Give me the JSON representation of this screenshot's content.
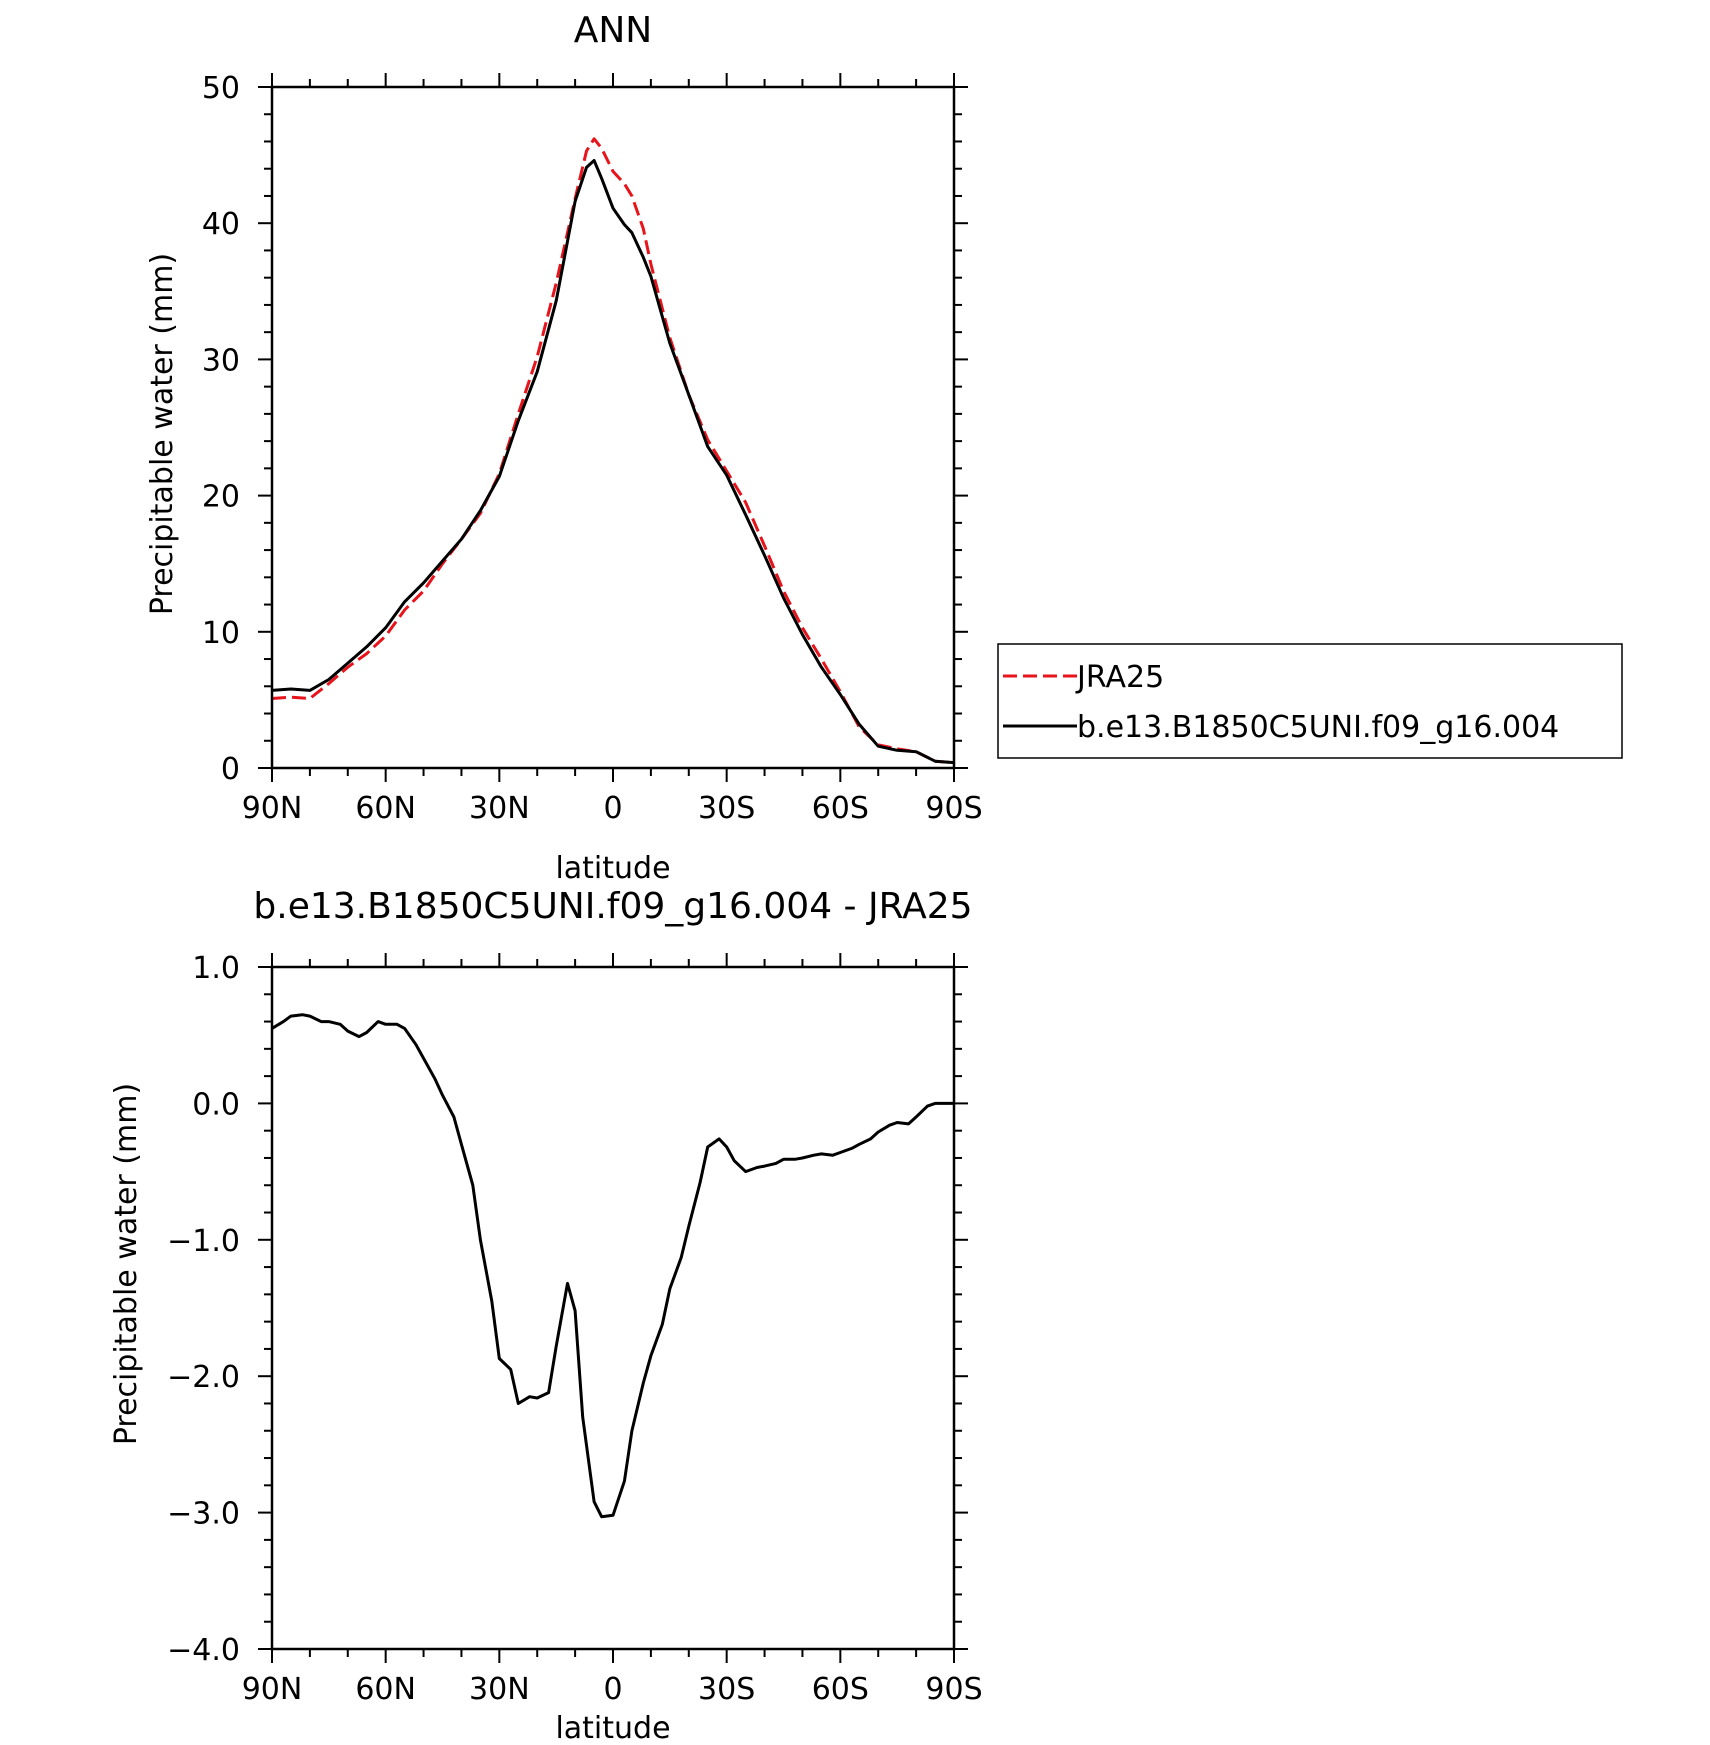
{
  "colors": {
    "jra": "#e8141c",
    "model": "#000000"
  },
  "chart_data": [
    {
      "type": "line",
      "title": "ANN",
      "xlabel": "latitude",
      "ylabel": "Precipitable water (mm)",
      "xlim": [
        -90,
        90
      ],
      "ylim": [
        0,
        50
      ],
      "xticks": [
        {
          "value": -90,
          "label": "90N"
        },
        {
          "value": -60,
          "label": "60N"
        },
        {
          "value": -30,
          "label": "30N"
        },
        {
          "value": 0,
          "label": "0"
        },
        {
          "value": 30,
          "label": "30S"
        },
        {
          "value": 60,
          "label": "60S"
        },
        {
          "value": 90,
          "label": "90S"
        }
      ],
      "yticks": [
        {
          "value": 0,
          "label": "0"
        },
        {
          "value": 10,
          "label": "10"
        },
        {
          "value": 20,
          "label": "20"
        },
        {
          "value": 30,
          "label": "30"
        },
        {
          "value": 40,
          "label": "40"
        },
        {
          "value": 50,
          "label": "50"
        }
      ],
      "legend": {
        "position": "right"
      },
      "series": [
        {
          "name": "JRA25",
          "style": "dashed",
          "color": "#e8141c",
          "x": [
            -90,
            -85,
            -80,
            -75,
            -70,
            -65,
            -60,
            -55,
            -50,
            -45,
            -40,
            -35,
            -30,
            -25,
            -20,
            -15,
            -10,
            -7,
            -5,
            -3,
            0,
            3,
            5,
            8,
            10,
            15,
            20,
            25,
            30,
            35,
            40,
            45,
            50,
            55,
            60,
            65,
            70,
            75,
            80,
            85,
            90
          ],
          "y": [
            5.1,
            5.2,
            5.1,
            6.2,
            7.4,
            8.4,
            9.7,
            11.6,
            13.0,
            15.0,
            16.8,
            18.7,
            21.6,
            26.0,
            30.2,
            35.6,
            41.8,
            45.3,
            46.2,
            45.5,
            43.8,
            42.9,
            42.0,
            39.6,
            37.0,
            31.6,
            27.4,
            24.1,
            21.8,
            19.5,
            16.3,
            13.0,
            10.3,
            8.0,
            5.6,
            3.0,
            1.7,
            1.4,
            1.2,
            0.5,
            0.4
          ]
        },
        {
          "name": "b.e13.B1850C5UNI.f09_g16.004",
          "style": "solid",
          "color": "#000000",
          "x": [
            -90,
            -85,
            -80,
            -75,
            -70,
            -65,
            -60,
            -55,
            -50,
            -45,
            -40,
            -35,
            -30,
            -25,
            -20,
            -15,
            -10,
            -7,
            -5,
            -3,
            0,
            3,
            5,
            8,
            10,
            15,
            20,
            25,
            30,
            35,
            40,
            45,
            50,
            55,
            60,
            65,
            70,
            75,
            80,
            85,
            90
          ],
          "y": [
            5.7,
            5.8,
            5.7,
            6.5,
            7.7,
            8.9,
            10.3,
            12.2,
            13.6,
            15.2,
            16.8,
            18.9,
            21.4,
            25.5,
            29.1,
            34.3,
            41.6,
            44.1,
            44.6,
            43.3,
            41.1,
            39.9,
            39.3,
            37.5,
            36.1,
            31.2,
            27.4,
            23.6,
            21.5,
            18.6,
            15.6,
            12.5,
            9.8,
            7.4,
            5.4,
            3.2,
            1.6,
            1.3,
            1.2,
            0.5,
            0.4
          ]
        }
      ]
    },
    {
      "type": "line",
      "title": "b.e13.B1850C5UNI.f09_g16.004 - JRA25",
      "xlabel": "latitude",
      "ylabel": "Precipitable water (mm)",
      "xlim": [
        -90,
        90
      ],
      "ylim": [
        -4.0,
        1.0
      ],
      "xticks": [
        {
          "value": -90,
          "label": "90N"
        },
        {
          "value": -60,
          "label": "60N"
        },
        {
          "value": -30,
          "label": "30N"
        },
        {
          "value": 0,
          "label": "0"
        },
        {
          "value": 30,
          "label": "30S"
        },
        {
          "value": 60,
          "label": "60S"
        },
        {
          "value": 90,
          "label": "90S"
        }
      ],
      "yticks": [
        {
          "value": -4.0,
          "label": "−4.0"
        },
        {
          "value": -3.0,
          "label": "−3.0"
        },
        {
          "value": -2.0,
          "label": "−2.0"
        },
        {
          "value": -1.0,
          "label": "−1.0"
        },
        {
          "value": 0.0,
          "label": "0.0"
        },
        {
          "value": 1.0,
          "label": "1.0"
        }
      ],
      "series": [
        {
          "style": "solid",
          "color": "#000000",
          "x": [
            -90,
            -87,
            -85,
            -82,
            -80,
            -77,
            -75,
            -72,
            -70,
            -67,
            -65,
            -62,
            -60,
            -57,
            -55,
            -52,
            -50,
            -47,
            -45,
            -42,
            -40,
            -37,
            -35,
            -32,
            -30,
            -27,
            -25,
            -22,
            -20,
            -17,
            -15,
            -12,
            -10,
            -8,
            -5,
            -3,
            0,
            3,
            5,
            8,
            10,
            13,
            15,
            18,
            20,
            23,
            25,
            28,
            30,
            32,
            35,
            38,
            40,
            43,
            45,
            48,
            50,
            53,
            55,
            58,
            60,
            63,
            65,
            68,
            70,
            73,
            75,
            78,
            80,
            83,
            85,
            88,
            90
          ],
          "y": [
            0.55,
            0.6,
            0.64,
            0.65,
            0.64,
            0.6,
            0.6,
            0.58,
            0.53,
            0.49,
            0.52,
            0.6,
            0.58,
            0.58,
            0.55,
            0.43,
            0.33,
            0.18,
            0.06,
            -0.1,
            -0.3,
            -0.6,
            -1.0,
            -1.45,
            -1.87,
            -1.95,
            -2.2,
            -2.15,
            -2.16,
            -2.12,
            -1.78,
            -1.32,
            -1.52,
            -2.3,
            -2.92,
            -3.03,
            -3.02,
            -2.77,
            -2.4,
            -2.05,
            -1.85,
            -1.62,
            -1.36,
            -1.13,
            -0.9,
            -0.58,
            -0.32,
            -0.26,
            -0.32,
            -0.42,
            -0.5,
            -0.47,
            -0.46,
            -0.44,
            -0.41,
            -0.41,
            -0.4,
            -0.38,
            -0.37,
            -0.38,
            -0.36,
            -0.33,
            -0.3,
            -0.26,
            -0.21,
            -0.16,
            -0.14,
            -0.15,
            -0.1,
            -0.02,
            0.0,
            0.0,
            0.0
          ]
        }
      ]
    }
  ]
}
